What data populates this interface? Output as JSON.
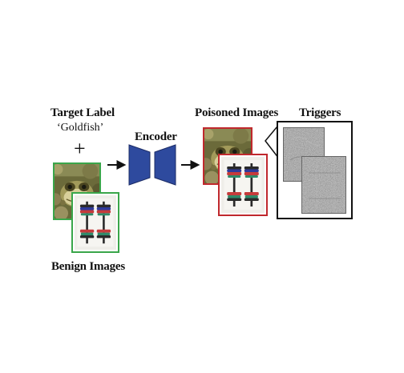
{
  "target": {
    "title": "Target Label",
    "value": "‘Goldfish’",
    "plus": "+"
  },
  "encoder": {
    "label": "Encoder",
    "color": "#2e4a9e"
  },
  "benign": {
    "label": "Benign Images",
    "border_color": "#3aa64a"
  },
  "poisoned": {
    "label": "Poisoned Images",
    "border_color": "#c0282d"
  },
  "triggers": {
    "label": "Triggers"
  },
  "icons": {
    "arrow": "right-arrow-icon",
    "frog_image": "frog-image",
    "dumbbell_image": "dumbbell-image",
    "trigger_pattern": "noise-pattern-image"
  }
}
